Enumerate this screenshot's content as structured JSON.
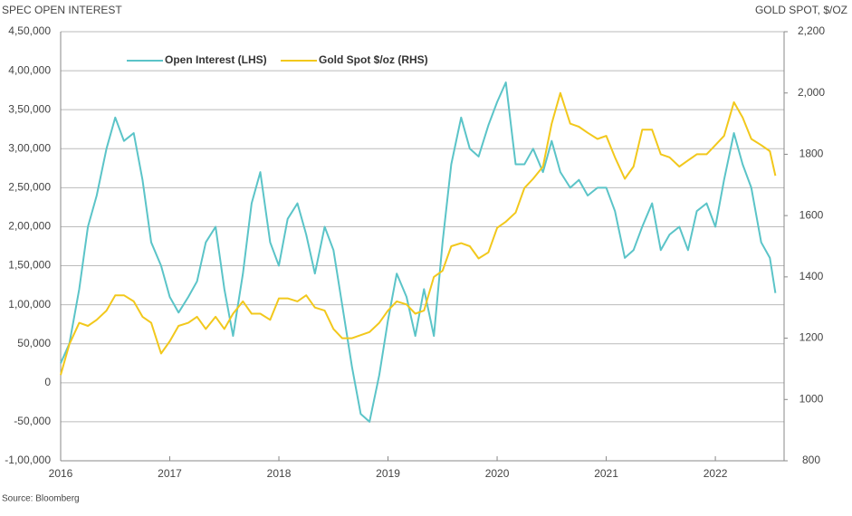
{
  "chart_data": {
    "type": "line",
    "title_left": "SPEC OPEN INTEREST",
    "title_right": "GOLD SPOT, $/OZ",
    "source": "Source: Bloomberg",
    "x": [
      2016,
      2016.08,
      2016.17,
      2016.25,
      2016.33,
      2016.42,
      2016.5,
      2016.58,
      2016.67,
      2016.75,
      2016.83,
      2016.92,
      2017,
      2017.08,
      2017.17,
      2017.25,
      2017.33,
      2017.42,
      2017.5,
      2017.58,
      2017.67,
      2017.75,
      2017.83,
      2017.92,
      2018,
      2018.08,
      2018.17,
      2018.25,
      2018.33,
      2018.42,
      2018.5,
      2018.58,
      2018.67,
      2018.75,
      2018.83,
      2018.92,
      2019,
      2019.08,
      2019.17,
      2019.25,
      2019.33,
      2019.42,
      2019.5,
      2019.58,
      2019.67,
      2019.75,
      2019.83,
      2019.92,
      2020,
      2020.08,
      2020.17,
      2020.25,
      2020.33,
      2020.42,
      2020.5,
      2020.58,
      2020.67,
      2020.75,
      2020.83,
      2020.92,
      2021,
      2021.08,
      2021.17,
      2021.25,
      2021.33,
      2021.42,
      2021.5,
      2021.58,
      2021.67,
      2021.75,
      2021.83,
      2021.92,
      2022,
      2022.08,
      2022.17,
      2022.25,
      2022.33,
      2022.42,
      2022.5,
      2022.55
    ],
    "series": [
      {
        "name": "Open Interest (LHS)",
        "color": "#5bc4c8",
        "axis": "y",
        "values": [
          25000,
          50000,
          120000,
          200000,
          240000,
          300000,
          340000,
          310000,
          320000,
          260000,
          180000,
          150000,
          110000,
          90000,
          110000,
          130000,
          180000,
          200000,
          120000,
          60000,
          140000,
          230000,
          270000,
          180000,
          150000,
          210000,
          230000,
          190000,
          140000,
          200000,
          170000,
          100000,
          20000,
          -40000,
          -50000,
          10000,
          80000,
          140000,
          110000,
          60000,
          120000,
          60000,
          180000,
          280000,
          340000,
          300000,
          290000,
          330000,
          360000,
          385000,
          280000,
          280000,
          300000,
          270000,
          310000,
          270000,
          250000,
          260000,
          240000,
          250000,
          250000,
          220000,
          160000,
          170000,
          200000,
          230000,
          170000,
          190000,
          200000,
          170000,
          220000,
          230000,
          200000,
          260000,
          320000,
          280000,
          250000,
          180000,
          160000,
          115000
        ]
      },
      {
        "name": "Gold Spot $/oz (RHS)",
        "color": "#f2c81c",
        "axis": "y2",
        "values": [
          1080,
          1180,
          1250,
          1240,
          1260,
          1290,
          1340,
          1340,
          1320,
          1270,
          1250,
          1150,
          1190,
          1240,
          1250,
          1270,
          1230,
          1270,
          1230,
          1280,
          1320,
          1280,
          1280,
          1260,
          1330,
          1330,
          1320,
          1340,
          1300,
          1290,
          1230,
          1200,
          1200,
          1210,
          1220,
          1250,
          1290,
          1320,
          1310,
          1280,
          1290,
          1400,
          1420,
          1500,
          1510,
          1500,
          1460,
          1480,
          1560,
          1580,
          1610,
          1690,
          1720,
          1760,
          1900,
          2000,
          1900,
          1890,
          1870,
          1850,
          1860,
          1790,
          1720,
          1760,
          1880,
          1880,
          1800,
          1790,
          1760,
          1780,
          1800,
          1800,
          1830,
          1860,
          1970,
          1920,
          1850,
          1830,
          1810,
          1730
        ]
      }
    ],
    "xlim": [
      2016,
      2022.63
    ],
    "xticks": [
      2016,
      2017,
      2018,
      2019,
      2020,
      2021,
      2022
    ],
    "ylim": [
      -100000,
      450000
    ],
    "yticks": [
      {
        "value": -100000,
        "label": "-1,00,000"
      },
      {
        "value": -50000,
        "label": "-50,000"
      },
      0,
      {
        "value": 50000,
        "label": "50,000"
      },
      {
        "value": 100000,
        "label": "1,00,000"
      },
      {
        "value": 150000,
        "label": "1,50,000"
      },
      {
        "value": 200000,
        "label": "2,00,000"
      },
      {
        "value": 250000,
        "label": "2,50,000"
      },
      {
        "value": 300000,
        "label": "3,00,000"
      },
      {
        "value": 350000,
        "label": "3,50,000"
      },
      {
        "value": 400000,
        "label": "4,00,000"
      },
      {
        "value": 450000,
        "label": "4,50,000"
      }
    ],
    "y2lim": [
      800,
      2200
    ],
    "y2ticks": [
      800,
      1000,
      1200,
      1400,
      1600,
      1800,
      {
        "value": 2000,
        "label": "2,000"
      },
      {
        "value": 2200,
        "label": "2,200"
      }
    ],
    "grid": true
  }
}
